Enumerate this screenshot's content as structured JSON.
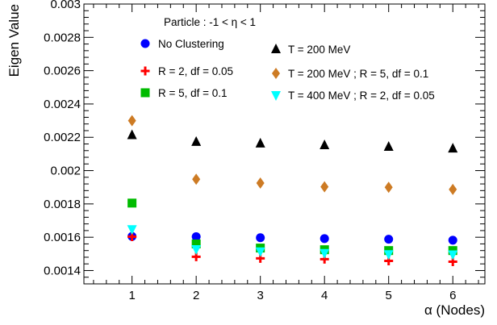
{
  "chart_data": {
    "type": "scatter",
    "xlabel": "α (Nodes)",
    "ylabel": "Eigen Value",
    "xlim": [
      0.25,
      6.5
    ],
    "ylim": [
      0.00132,
      0.003
    ],
    "x_ticks": [
      1,
      2,
      3,
      4,
      5,
      6
    ],
    "x_tick_labels": [
      "1",
      "2",
      "3",
      "4",
      "5",
      "6"
    ],
    "y_ticks": [
      0.0014,
      0.0016,
      0.0018,
      0.002,
      0.0022,
      0.0024,
      0.0026,
      0.0028,
      0.003
    ],
    "y_tick_labels": [
      "0.0014",
      "0.0016",
      "0.0018",
      "0.002",
      "0.0022",
      "0.0024",
      "0.0026",
      "0.0028",
      "0.003"
    ],
    "grid": false,
    "legend_header": "Particle  : -1 < η < 1",
    "legend_placement": "top",
    "series": [
      {
        "name": "No Clustering",
        "marker": "circle",
        "color": "#0000ff",
        "x": [
          1,
          2,
          3,
          4,
          5,
          6
        ],
        "y": [
          0.001605,
          0.001603,
          0.001597,
          0.001592,
          0.001588,
          0.001582
        ]
      },
      {
        "name": "R = 2, df = 0.05",
        "marker": "plus",
        "color": "#ff0000",
        "x": [
          1,
          2,
          3,
          4,
          5,
          6
        ],
        "y": [
          0.001603,
          0.001483,
          0.001473,
          0.001468,
          0.001458,
          0.001453
        ]
      },
      {
        "name": "R = 5, df = 0.1",
        "marker": "square",
        "color": "#00bb00",
        "x": [
          1,
          2,
          3,
          4,
          5,
          6
        ],
        "y": [
          0.001805,
          0.00156,
          0.001535,
          0.001525,
          0.00152,
          0.00152
        ]
      },
      {
        "name": "T = 200 MeV",
        "marker": "triangle-up",
        "color": "#000000",
        "x": [
          1,
          2,
          3,
          4,
          5,
          6
        ],
        "y": [
          0.002213,
          0.002173,
          0.002163,
          0.002153,
          0.002143,
          0.002133
        ]
      },
      {
        "name": "T = 200 MeV ; R = 5, df = 0.1",
        "marker": "diamond",
        "color": "#cd7b24",
        "x": [
          1,
          2,
          3,
          4,
          5,
          6
        ],
        "y": [
          0.0023,
          0.001948,
          0.001925,
          0.001903,
          0.0019,
          0.001887
        ]
      },
      {
        "name": "T = 400 MeV ; R = 2, df = 0.05",
        "marker": "triangle-down",
        "color": "#00ffff",
        "x": [
          1,
          2,
          3,
          4,
          5,
          6
        ],
        "y": [
          0.001648,
          0.001528,
          0.001515,
          0.001505,
          0.001498,
          0.001497
        ]
      }
    ]
  }
}
